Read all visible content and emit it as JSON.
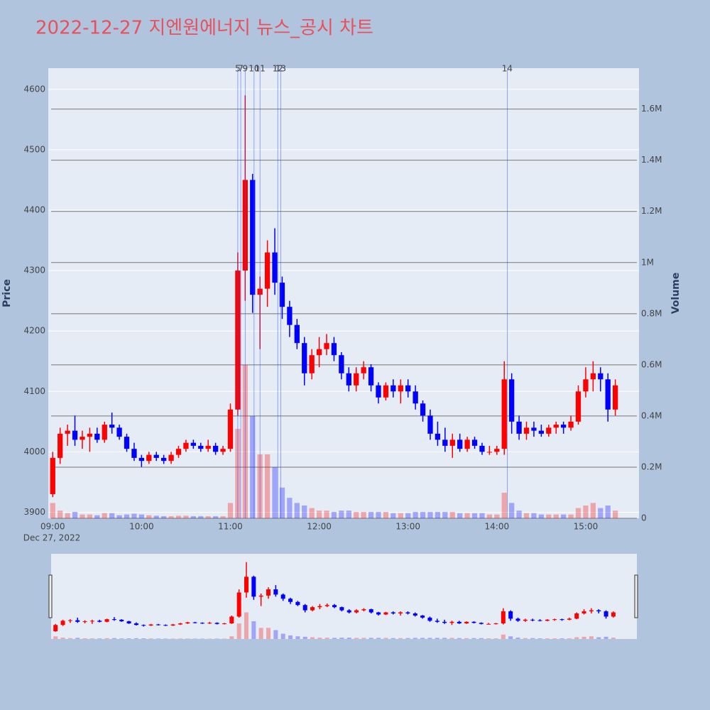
{
  "chart_data": {
    "type": "candlestick",
    "title": "2022-12-27 지엔원에너지 뉴스_공시 차트",
    "y_label": "Price",
    "y2_label": "Volume",
    "x_date_label": "Dec 27, 2022",
    "increasing_color": "#ff0000",
    "decreasing_color": "#0000ff",
    "xlim": [
      "08:57",
      "15:36"
    ],
    "xticks": [
      "09:00",
      "10:00",
      "11:00",
      "12:00",
      "13:00",
      "14:00",
      "15:00"
    ],
    "ylim": [
      3890,
      4635
    ],
    "yticks": [
      3900,
      4000,
      4100,
      4200,
      4300,
      4400,
      4500,
      4600
    ],
    "y2lim": [
      0,
      1760000
    ],
    "y2ticks": [
      0,
      {
        "value": 200000,
        "label": "0.2M"
      },
      {
        "value": 400000,
        "label": "0.4M"
      },
      {
        "value": 600000,
        "label": "0.6M"
      },
      {
        "value": 800000,
        "label": "0.8M"
      },
      {
        "value": 1000000,
        "label": "1M"
      },
      {
        "value": 1200000,
        "label": "1.2M"
      },
      {
        "value": 1400000,
        "label": "1.4M"
      },
      {
        "value": 1600000,
        "label": "1.6M"
      }
    ],
    "annotations": [
      {
        "x": "11:05",
        "text": "5"
      },
      {
        "x": "11:07",
        "text": "7"
      },
      {
        "x": "11:10",
        "text": "9"
      },
      {
        "x": "11:16",
        "text": "10"
      },
      {
        "x": "11:20",
        "text": "11"
      },
      {
        "x": "11:32",
        "text": "12"
      },
      {
        "x": "11:34",
        "text": "13"
      },
      {
        "x": "14:07",
        "text": "14"
      }
    ],
    "x": [
      "09:00",
      "09:05",
      "09:10",
      "09:15",
      "09:20",
      "09:25",
      "09:30",
      "09:35",
      "09:40",
      "09:45",
      "09:50",
      "09:55",
      "10:00",
      "10:05",
      "10:10",
      "10:15",
      "10:20",
      "10:25",
      "10:30",
      "10:35",
      "10:40",
      "10:45",
      "10:50",
      "10:55",
      "11:00",
      "11:05",
      "11:10",
      "11:15",
      "11:20",
      "11:25",
      "11:30",
      "11:35",
      "11:40",
      "11:45",
      "11:50",
      "11:55",
      "12:00",
      "12:05",
      "12:10",
      "12:15",
      "12:20",
      "12:25",
      "12:30",
      "12:35",
      "12:40",
      "12:45",
      "12:50",
      "12:55",
      "13:00",
      "13:05",
      "13:10",
      "13:15",
      "13:20",
      "13:25",
      "13:30",
      "13:35",
      "13:40",
      "13:45",
      "13:50",
      "13:55",
      "14:00",
      "14:05",
      "14:10",
      "14:15",
      "14:20",
      "14:25",
      "14:30",
      "14:35",
      "14:40",
      "14:45",
      "14:50",
      "14:55",
      "15:00",
      "15:05",
      "15:10",
      "15:15",
      "15:20"
    ],
    "open": [
      3930,
      3990,
      4030,
      4035,
      4020,
      4025,
      4030,
      4020,
      4045,
      4040,
      4025,
      4005,
      3990,
      3985,
      3995,
      3990,
      3985,
      3995,
      4005,
      4015,
      4010,
      4005,
      4010,
      4000,
      4005,
      4070,
      4300,
      4450,
      4260,
      4270,
      4330,
      4280,
      4240,
      4210,
      4180,
      4130,
      4160,
      4170,
      4180,
      4160,
      4130,
      4110,
      4130,
      4140,
      4110,
      4090,
      4110,
      4100,
      4110,
      4100,
      4080,
      4060,
      4030,
      4020,
      4010,
      4020,
      4005,
      4020,
      4010,
      4000,
      4000,
      4005,
      4120,
      4050,
      4030,
      4040,
      4035,
      4030,
      4040,
      4045,
      4040,
      4050,
      4100,
      4120,
      4130,
      4120,
      4070
    ],
    "high": [
      4000,
      4040,
      4045,
      4060,
      4035,
      4040,
      4040,
      4050,
      4065,
      4045,
      4030,
      4015,
      3995,
      4000,
      4000,
      3995,
      4000,
      4010,
      4020,
      4020,
      4015,
      4020,
      4015,
      4010,
      4080,
      4330,
      4590,
      4460,
      4290,
      4350,
      4370,
      4290,
      4250,
      4220,
      4190,
      4170,
      4190,
      4195,
      4190,
      4165,
      4140,
      4140,
      4150,
      4145,
      4115,
      4115,
      4120,
      4120,
      4120,
      4110,
      4085,
      4070,
      4050,
      4040,
      4030,
      4030,
      4025,
      4025,
      4015,
      4010,
      4010,
      4150,
      4130,
      4060,
      4050,
      4050,
      4045,
      4045,
      4050,
      4050,
      4060,
      4110,
      4140,
      4150,
      4140,
      4130,
      4120
    ],
    "low": [
      3925,
      3980,
      4010,
      4010,
      4005,
      4000,
      4015,
      4015,
      4030,
      4020,
      4000,
      3985,
      3975,
      3980,
      3985,
      3980,
      3980,
      3990,
      4000,
      4005,
      4000,
      4000,
      3995,
      3995,
      4000,
      4060,
      4250,
      4230,
      4170,
      4240,
      4260,
      4220,
      4190,
      4170,
      4110,
      4120,
      4140,
      4160,
      4150,
      4120,
      4100,
      4100,
      4120,
      4100,
      4080,
      4085,
      4090,
      4080,
      4090,
      4070,
      4050,
      4020,
      4010,
      4000,
      3990,
      4000,
      4000,
      4005,
      3995,
      3995,
      3995,
      3995,
      4030,
      4020,
      4020,
      4025,
      4025,
      4025,
      4030,
      4030,
      4035,
      4045,
      4090,
      4100,
      4100,
      4050,
      4060
    ],
    "close": [
      3990,
      4030,
      4035,
      4020,
      4025,
      4030,
      4020,
      4045,
      4040,
      4025,
      4005,
      3990,
      3985,
      3995,
      3990,
      3985,
      3995,
      4005,
      4015,
      4010,
      4005,
      4010,
      4000,
      4005,
      4070,
      4300,
      4450,
      4260,
      4270,
      4330,
      4280,
      4240,
      4210,
      4180,
      4130,
      4160,
      4170,
      4180,
      4160,
      4130,
      4110,
      4130,
      4140,
      4110,
      4090,
      4110,
      4100,
      4110,
      4100,
      4080,
      4060,
      4030,
      4020,
      4010,
      4020,
      4005,
      4020,
      4010,
      4000,
      4000,
      4005,
      4120,
      4050,
      4030,
      4040,
      4035,
      4030,
      4040,
      4045,
      4040,
      4050,
      4100,
      4120,
      4130,
      4120,
      4070,
      4110
    ],
    "volume": [
      60000,
      30000,
      20000,
      25000,
      15000,
      15000,
      12000,
      20000,
      20000,
      12000,
      15000,
      18000,
      15000,
      12000,
      10000,
      8000,
      8000,
      10000,
      10000,
      8000,
      8000,
      8000,
      8000,
      8000,
      60000,
      350000,
      600000,
      400000,
      250000,
      250000,
      200000,
      120000,
      80000,
      60000,
      50000,
      40000,
      30000,
      30000,
      25000,
      30000,
      30000,
      25000,
      25000,
      25000,
      25000,
      25000,
      20000,
      20000,
      20000,
      25000,
      25000,
      25000,
      25000,
      25000,
      25000,
      20000,
      20000,
      20000,
      20000,
      15000,
      15000,
      100000,
      60000,
      30000,
      20000,
      20000,
      15000,
      15000,
      15000,
      15000,
      15000,
      40000,
      50000,
      60000,
      40000,
      50000,
      30000
    ]
  }
}
